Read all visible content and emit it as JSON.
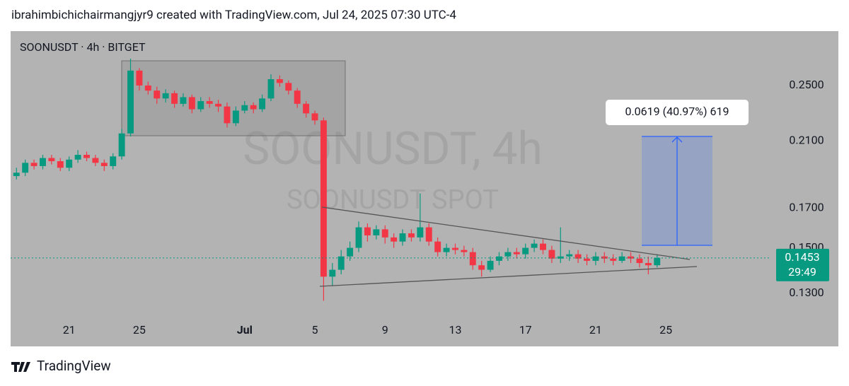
{
  "chart_data": {
    "type": "candlestick",
    "header": "ibrahimbichichairmangjyr9 created with TradingView.com, Jul 24, 2025 07:30 UTC-4",
    "title": "SOONUSDT · 4h · BITGET",
    "watermark": "SOONUSDT, 4h",
    "watermark_subtitle": "SOONUSDT SPOT",
    "footer": "TradingView",
    "measure_label": "0.0619 (40.97%) 619",
    "last_price": 0.1453,
    "countdown": "29:49",
    "log_scale": true,
    "grid": false,
    "up_color": "#089981",
    "down_color": "#f23645",
    "ylim": [
      0.11,
      0.296
    ],
    "yticks": [
      {
        "value": 0.25,
        "label": "0.2500"
      },
      {
        "value": 0.21,
        "label": "0.2100"
      },
      {
        "value": 0.17,
        "label": "0.1700"
      },
      {
        "value": 0.15,
        "label": "0.1500"
      },
      {
        "value": 0.13,
        "label": "0.1300"
      }
    ],
    "xlim": [
      "06-17 16",
      "07-31 00"
    ],
    "xticks": [
      {
        "value": "06-21 00",
        "label": "21"
      },
      {
        "value": "06-25 00",
        "label": "25"
      },
      {
        "value": "07-01 00",
        "label": "Jul"
      },
      {
        "value": "07-05 00",
        "label": "5"
      },
      {
        "value": "07-09 00",
        "label": "9"
      },
      {
        "value": "07-13 00",
        "label": "13"
      },
      {
        "value": "07-17 00",
        "label": "17"
      },
      {
        "value": "07-21 00",
        "label": "21"
      },
      {
        "value": "07-25 00",
        "label": "25"
      }
    ],
    "x": [
      "06-18 00",
      "06-18 12",
      "06-19 00",
      "06-19 12",
      "06-20 00",
      "06-20 12",
      "06-21 00",
      "06-21 12",
      "06-22 00",
      "06-22 12",
      "06-23 00",
      "06-23 12",
      "06-24 00",
      "06-24 12",
      "06-25 00",
      "06-25 12",
      "06-26 00",
      "06-26 12",
      "06-27 00",
      "06-27 12",
      "06-28 00",
      "06-28 12",
      "06-29 00",
      "06-29 12",
      "06-30 00",
      "06-30 12",
      "07-01 00",
      "07-01 12",
      "07-02 00",
      "07-02 12",
      "07-03 00",
      "07-03 12",
      "07-04 00",
      "07-04 12",
      "07-05 00",
      "07-05 12",
      "07-06 00",
      "07-06 12",
      "07-07 00",
      "07-07 12",
      "07-08 00",
      "07-08 12",
      "07-09 00",
      "07-09 12",
      "07-10 00",
      "07-10 12",
      "07-11 00",
      "07-11 12",
      "07-12 00",
      "07-12 12",
      "07-13 00",
      "07-13 12",
      "07-14 00",
      "07-14 12",
      "07-15 00",
      "07-15 12",
      "07-16 00",
      "07-16 12",
      "07-17 00",
      "07-17 12",
      "07-18 00",
      "07-18 12",
      "07-19 00",
      "07-19 12",
      "07-20 00",
      "07-20 12",
      "07-21 00",
      "07-21 12",
      "07-22 00",
      "07-22 12",
      "07-23 00",
      "07-23 12",
      "07-24 00",
      "07-24 12"
    ],
    "open": [
      0.188,
      0.19,
      0.196,
      0.194,
      0.199,
      0.197,
      0.193,
      0.198,
      0.201,
      0.199,
      0.196,
      0.194,
      0.2,
      0.215,
      0.262,
      0.25,
      0.246,
      0.24,
      0.244,
      0.236,
      0.241,
      0.232,
      0.238,
      0.236,
      0.234,
      0.222,
      0.231,
      0.235,
      0.232,
      0.24,
      0.255,
      0.252,
      0.246,
      0.236,
      0.229,
      0.224,
      0.137,
      0.14,
      0.146,
      0.15,
      0.16,
      0.156,
      0.159,
      0.155,
      0.153,
      0.157,
      0.155,
      0.16,
      0.153,
      0.148,
      0.15,
      0.149,
      0.148,
      0.142,
      0.14,
      0.144,
      0.146,
      0.148,
      0.147,
      0.15,
      0.152,
      0.149,
      0.145,
      0.146,
      0.147,
      0.145,
      0.144,
      0.146,
      0.145,
      0.144,
      0.146,
      0.145,
      0.143,
      0.142
    ],
    "high": [
      0.193,
      0.198,
      0.198,
      0.201,
      0.201,
      0.199,
      0.2,
      0.204,
      0.203,
      0.201,
      0.198,
      0.202,
      0.218,
      0.272,
      0.264,
      0.253,
      0.249,
      0.247,
      0.246,
      0.244,
      0.243,
      0.241,
      0.241,
      0.239,
      0.237,
      0.234,
      0.238,
      0.237,
      0.243,
      0.259,
      0.258,
      0.254,
      0.248,
      0.238,
      0.231,
      0.226,
      0.143,
      0.149,
      0.153,
      0.163,
      0.162,
      0.161,
      0.161,
      0.157,
      0.159,
      0.159,
      0.178,
      0.162,
      0.155,
      0.152,
      0.152,
      0.151,
      0.15,
      0.144,
      0.146,
      0.148,
      0.15,
      0.15,
      0.152,
      0.154,
      0.154,
      0.151,
      0.16,
      0.149,
      0.149,
      0.147,
      0.148,
      0.148,
      0.147,
      0.148,
      0.148,
      0.147,
      0.146,
      0.147
    ],
    "low": [
      0.186,
      0.188,
      0.192,
      0.192,
      0.195,
      0.191,
      0.191,
      0.196,
      0.197,
      0.194,
      0.191,
      0.192,
      0.198,
      0.213,
      0.246,
      0.243,
      0.236,
      0.237,
      0.233,
      0.234,
      0.229,
      0.23,
      0.233,
      0.23,
      0.219,
      0.22,
      0.229,
      0.229,
      0.23,
      0.238,
      0.249,
      0.243,
      0.233,
      0.226,
      0.221,
      0.127,
      0.133,
      0.138,
      0.144,
      0.148,
      0.153,
      0.154,
      0.152,
      0.15,
      0.151,
      0.153,
      0.153,
      0.151,
      0.146,
      0.146,
      0.147,
      0.146,
      0.14,
      0.137,
      0.139,
      0.142,
      0.144,
      0.145,
      0.145,
      0.148,
      0.147,
      0.143,
      0.143,
      0.144,
      0.143,
      0.142,
      0.142,
      0.143,
      0.142,
      0.143,
      0.143,
      0.141,
      0.138,
      0.141
    ],
    "close": [
      0.19,
      0.196,
      0.194,
      0.199,
      0.197,
      0.193,
      0.198,
      0.201,
      0.199,
      0.196,
      0.194,
      0.2,
      0.215,
      0.262,
      0.25,
      0.246,
      0.24,
      0.244,
      0.236,
      0.241,
      0.232,
      0.238,
      0.236,
      0.234,
      0.222,
      0.231,
      0.235,
      0.232,
      0.24,
      0.255,
      0.252,
      0.246,
      0.236,
      0.229,
      0.224,
      0.137,
      0.14,
      0.146,
      0.15,
      0.16,
      0.156,
      0.159,
      0.155,
      0.153,
      0.157,
      0.155,
      0.16,
      0.153,
      0.148,
      0.15,
      0.149,
      0.148,
      0.142,
      0.14,
      0.144,
      0.146,
      0.148,
      0.147,
      0.15,
      0.152,
      0.149,
      0.145,
      0.146,
      0.147,
      0.145,
      0.144,
      0.146,
      0.145,
      0.144,
      0.146,
      0.145,
      0.143,
      0.142,
      0.1453
    ]
  }
}
